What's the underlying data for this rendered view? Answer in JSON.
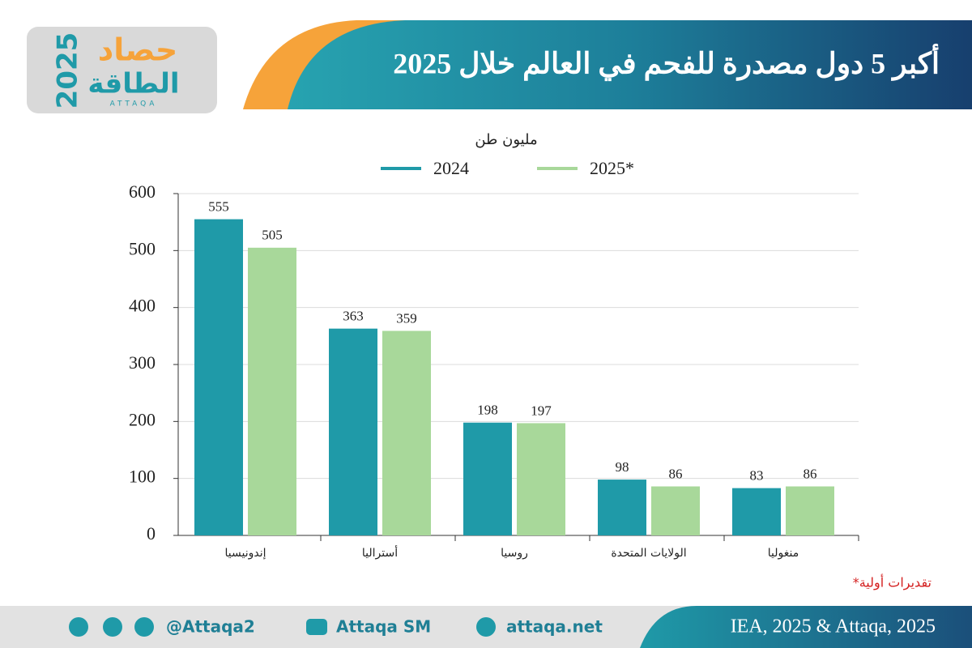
{
  "logo": {
    "word": "حصاد",
    "year": "2025",
    "brand": "الطاقة",
    "latin": "ATTAQA"
  },
  "chart_data": {
    "type": "bar",
    "title": "أكبر 5 دول مصدرة للفحم في العالم خلال 2025",
    "y_label": "مليون طن",
    "categories": [
      "إندونيسيا",
      "أستراليا",
      "روسيا",
      "الولايات المتحدة",
      "منغوليا"
    ],
    "series": [
      {
        "name": "2024",
        "color": "#1f9aa8",
        "values": [
          555,
          363,
          198,
          98,
          83
        ]
      },
      {
        "name": "2025*",
        "color": "#a8d89a",
        "values": [
          505,
          359,
          197,
          86,
          86
        ]
      }
    ],
    "ylim": [
      0,
      600
    ],
    "yticks": [
      0,
      100,
      200,
      300,
      400,
      500,
      600
    ],
    "grid": true,
    "note": "*تقديرات أولية"
  },
  "footer": {
    "twitter": "@Attaqa2",
    "youtube": "Attaqa SM",
    "web": "attaqa.net",
    "source": "IEA, 2025 & Attaqa, 2025"
  }
}
